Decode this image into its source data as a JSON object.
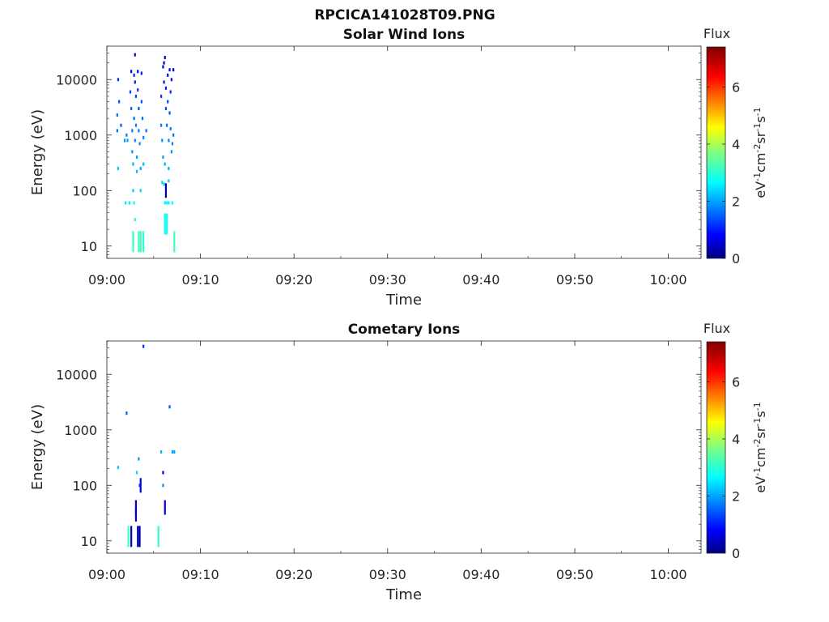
{
  "figure_title": "RPCICA141028T09.PNG",
  "colors": {
    "axis": "#262626",
    "colormap": [
      "#00007f",
      "#0000ff",
      "#007fff",
      "#00ffff",
      "#7fff7f",
      "#ffff00",
      "#ff7f00",
      "#ff0000",
      "#7f0000"
    ]
  },
  "chart_data": [
    {
      "type": "heatmap",
      "title": "Solar Wind Ions",
      "xlabel": "Time",
      "ylabel": "Energy (eV)",
      "x_unit": "minutes after 09:00",
      "xlim": [
        0,
        63.5
      ],
      "ylim": [
        6,
        40000
      ],
      "y_scale": "log",
      "x_ticks": [
        0,
        10,
        20,
        30,
        40,
        50,
        60
      ],
      "x_tick_labels": [
        "09:00",
        "09:10",
        "09:20",
        "09:30",
        "09:40",
        "09:50",
        "10:00"
      ],
      "y_ticks": [
        10,
        100,
        1000,
        10000
      ],
      "y_tick_labels": [
        "10",
        "100",
        "1000",
        "10000"
      ],
      "colorbar": {
        "label": "Flux",
        "unit_label": "eV-1cm-2sr-1s-1",
        "range": [
          0,
          7.4
        ],
        "ticks": [
          0,
          2,
          4,
          6
        ],
        "tick_labels": [
          "0",
          "2",
          "4",
          "6"
        ]
      },
      "cells": [
        [
          1.2,
          10000,
          1.2
        ],
        [
          1.3,
          4000,
          1.5
        ],
        [
          1.1,
          2300,
          1.8
        ],
        [
          1.5,
          1500,
          1.6
        ],
        [
          1.1,
          1200,
          1.7
        ],
        [
          1.2,
          250,
          2.4
        ],
        [
          1.9,
          800,
          2.0
        ],
        [
          2.1,
          1000,
          1.9
        ],
        [
          2.2,
          800,
          2.1
        ],
        [
          2.0,
          60,
          2.6
        ],
        [
          2.4,
          60,
          2.6
        ],
        [
          2.5,
          6000,
          1.4
        ],
        [
          2.6,
          14000,
          0.9
        ],
        [
          2.6,
          3000,
          1.6
        ],
        [
          2.7,
          1200,
          1.8
        ],
        [
          2.7,
          500,
          2.0
        ],
        [
          2.8,
          300,
          2.2
        ],
        [
          2.8,
          100,
          2.4
        ],
        [
          2.9,
          12000,
          1.2
        ],
        [
          2.9,
          2000,
          1.7
        ],
        [
          3.0,
          28000,
          0.6
        ],
        [
          3.0,
          9000,
          1.1
        ],
        [
          3.0,
          800,
          1.9
        ],
        [
          3.1,
          5000,
          1.4
        ],
        [
          3.1,
          1500,
          1.8
        ],
        [
          3.2,
          400,
          2.1
        ],
        [
          3.2,
          220,
          2.3
        ],
        [
          3.3,
          14000,
          1.0
        ],
        [
          3.3,
          6500,
          1.3
        ],
        [
          3.4,
          3000,
          1.5
        ],
        [
          3.4,
          1200,
          1.8
        ],
        [
          3.5,
          700,
          2.0
        ],
        [
          3.6,
          250,
          2.2
        ],
        [
          3.6,
          100,
          2.5
        ],
        [
          3.7,
          13000,
          1.1
        ],
        [
          3.7,
          4000,
          1.5
        ],
        [
          3.8,
          2000,
          1.7
        ],
        [
          3.9,
          900,
          1.9
        ],
        [
          3.9,
          300,
          2.2
        ],
        [
          4.2,
          1200,
          1.7
        ],
        [
          2.9,
          60,
          2.8
        ],
        [
          3.0,
          30,
          2.9
        ],
        [
          2.8,
          12,
          3.2
        ],
        [
          3.4,
          12,
          3.3
        ],
        [
          3.6,
          12,
          3.2
        ],
        [
          3.9,
          12,
          3.1
        ],
        [
          5.8,
          5000,
          1.3
        ],
        [
          6.0,
          17000,
          0.8
        ],
        [
          6.1,
          20000,
          0.5
        ],
        [
          6.1,
          9000,
          1.0
        ],
        [
          6.2,
          25000,
          0.6
        ],
        [
          6.3,
          7000,
          1.1
        ],
        [
          6.3,
          3000,
          1.5
        ],
        [
          6.4,
          1500,
          1.7
        ],
        [
          6.5,
          12000,
          0.9
        ],
        [
          6.5,
          4000,
          1.4
        ],
        [
          6.6,
          800,
          1.9
        ],
        [
          6.7,
          15000,
          0.8
        ],
        [
          6.7,
          2500,
          1.5
        ],
        [
          6.8,
          6000,
          1.2
        ],
        [
          6.8,
          1300,
          1.8
        ],
        [
          6.9,
          10000,
          1.0
        ],
        [
          6.9,
          500,
          2.0
        ],
        [
          7.0,
          700,
          1.9
        ],
        [
          7.1,
          15000,
          0.7
        ],
        [
          7.1,
          1000,
          1.8
        ],
        [
          5.8,
          1500,
          1.8
        ],
        [
          5.9,
          800,
          1.9
        ],
        [
          6.0,
          400,
          2.1
        ],
        [
          6.2,
          300,
          2.2
        ],
        [
          6.6,
          250,
          2.2
        ],
        [
          5.9,
          140,
          2.4
        ],
        [
          6.1,
          130,
          2.5
        ],
        [
          6.6,
          150,
          2.4
        ],
        [
          6.3,
          100,
          0.3
        ],
        [
          6.2,
          60,
          2.7
        ],
        [
          6.4,
          60,
          2.8
        ],
        [
          6.6,
          60,
          2.7
        ],
        [
          7.0,
          60,
          2.8
        ],
        [
          6.2,
          25,
          2.8
        ],
        [
          6.4,
          25,
          2.9
        ],
        [
          7.2,
          12,
          3.2
        ]
      ]
    },
    {
      "type": "heatmap",
      "title": "Cometary Ions",
      "xlabel": "Time",
      "ylabel": "Energy (eV)",
      "x_unit": "minutes after 09:00",
      "xlim": [
        0,
        63.5
      ],
      "ylim": [
        6,
        40000
      ],
      "y_scale": "log",
      "x_ticks": [
        0,
        10,
        20,
        30,
        40,
        50,
        60
      ],
      "x_tick_labels": [
        "09:00",
        "09:10",
        "09:20",
        "09:30",
        "09:40",
        "09:50",
        "10:00"
      ],
      "y_ticks": [
        10,
        100,
        1000,
        10000
      ],
      "y_tick_labels": [
        "10",
        "100",
        "1000",
        "10000"
      ],
      "colorbar": {
        "label": "Flux",
        "unit_label": "eV-1cm-2sr-1s-1",
        "range": [
          0,
          7.4
        ],
        "ticks": [
          0,
          2,
          4,
          6
        ],
        "tick_labels": [
          "0",
          "2",
          "4",
          "6"
        ]
      },
      "cells": [
        [
          1.2,
          210,
          2.4
        ],
        [
          2.1,
          2000,
          1.6
        ],
        [
          3.9,
          32000,
          1.2
        ],
        [
          6.7,
          2600,
          1.5
        ],
        [
          3.2,
          170,
          2.5
        ],
        [
          3.4,
          300,
          2.0
        ],
        [
          3.5,
          100,
          1.5
        ],
        [
          3.6,
          100,
          0.8
        ],
        [
          3.1,
          40,
          0.6
        ],
        [
          3.1,
          30,
          0.6
        ],
        [
          2.3,
          12,
          3.2
        ],
        [
          2.6,
          12,
          0.5
        ],
        [
          3.3,
          12,
          0.5
        ],
        [
          3.5,
          12,
          0.3
        ],
        [
          5.5,
          12,
          3.1
        ],
        [
          5.8,
          400,
          2.2
        ],
        [
          6.0,
          170,
          0.7
        ],
        [
          6.0,
          100,
          2.0
        ],
        [
          6.2,
          40,
          0.8
        ],
        [
          7.0,
          400,
          2.1
        ],
        [
          7.2,
          400,
          2.1
        ]
      ]
    }
  ]
}
